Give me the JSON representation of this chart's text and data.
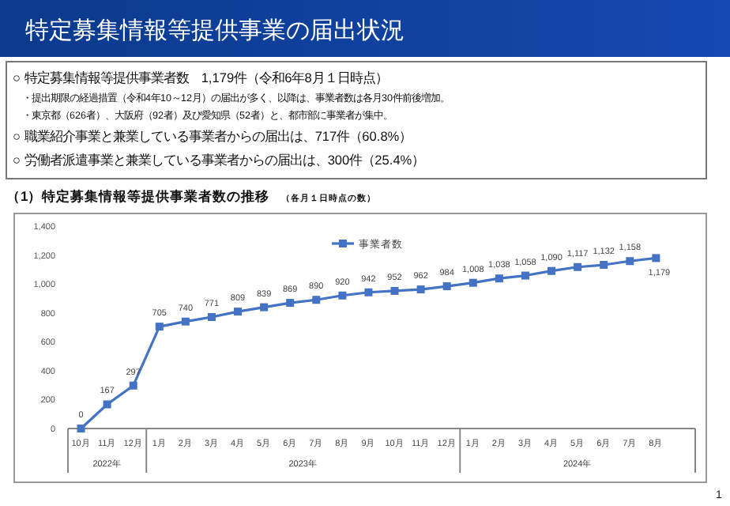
{
  "chart_data": {
    "type": "line",
    "title": "特定募集情報等提供事業の届出状況",
    "subtitle": "（1）特定募集情報等提供事業者数の推移",
    "x": [
      "2022-10",
      "2022-11",
      "2022-12",
      "2023-01",
      "2023-02",
      "2023-03",
      "2023-04",
      "2023-05",
      "2023-06",
      "2023-07",
      "2023-08",
      "2023-09",
      "2023-10",
      "2023-11",
      "2023-12",
      "2024-01",
      "2024-02",
      "2024-03",
      "2024-04",
      "2024-05",
      "2024-06",
      "2024-07",
      "2024-08"
    ],
    "xticks": [
      {
        "value": "2022-10",
        "label": "10月"
      },
      {
        "value": "2022-11",
        "label": "11月"
      },
      {
        "value": "2022-12",
        "label": "12月"
      },
      {
        "value": "2023-01",
        "label": "1月"
      },
      {
        "value": "2023-02",
        "label": "2月"
      },
      {
        "value": "2023-03",
        "label": "3月"
      },
      {
        "value": "2023-04",
        "label": "4月"
      },
      {
        "value": "2023-05",
        "label": "5月"
      },
      {
        "value": "2023-06",
        "label": "6月"
      },
      {
        "value": "2023-07",
        "label": "7月"
      },
      {
        "value": "2023-08",
        "label": "8月"
      },
      {
        "value": "2023-09",
        "label": "9月"
      },
      {
        "value": "2023-10",
        "label": "10月"
      },
      {
        "value": "2023-11",
        "label": "11月"
      },
      {
        "value": "2023-12",
        "label": "12月"
      },
      {
        "value": "2024-01",
        "label": "1月"
      },
      {
        "value": "2024-02",
        "label": "2月"
      },
      {
        "value": "2024-03",
        "label": "3月"
      },
      {
        "value": "2024-04",
        "label": "4月"
      },
      {
        "value": "2024-05",
        "label": "5月"
      },
      {
        "value": "2024-06",
        "label": "6月"
      },
      {
        "value": "2024-07",
        "label": "7月"
      },
      {
        "value": "2024-08",
        "label": "8月"
      }
    ],
    "series": [
      {
        "name": "事業者数",
        "color": "#4472c4",
        "values": [
          0,
          167,
          297,
          705,
          740,
          771,
          809,
          839,
          869,
          890,
          920,
          942,
          952,
          962,
          984,
          1008,
          1038,
          1058,
          1090,
          1117,
          1132,
          1158,
          1179
        ],
        "value_labels": [
          "0",
          "167",
          "297",
          "705",
          "740",
          "771",
          "809",
          "839",
          "869",
          "890",
          "920",
          "942",
          "952",
          "962",
          "984",
          "1,008",
          "1,038",
          "1,058",
          "1,090",
          "1,117",
          "1,132",
          "1,158",
          "1,179"
        ]
      }
    ],
    "ylim": [
      0,
      1400
    ],
    "yticks": [
      0,
      200,
      400,
      600,
      800,
      {
        "value": 1000,
        "label": "1,000"
      },
      {
        "value": 1200,
        "label": "1,200"
      },
      {
        "value": 1400,
        "label": "1,400"
      }
    ],
    "marker": "square",
    "legend": "top right",
    "grid": false,
    "annotations": [
      "○ 特定募集情報等提供事業者数　1,179件（令和6年8月１日時点）",
      "・提出期限の経過措置（令和4年10～12月）の届出が多く、以降は、事業者数は各月30件前後増加。",
      "・東京都（626者）、大阪府（92者）及び愛知県（52者）と、都市部に事業者が集中。",
      "○ 職業紹介事業と兼業している事業者からの届出は、717件（60.8%）",
      "○ 労働者派遣事業と兼業している事業者からの届出は、300件（25.4%）",
      "（各月１日時点の数）",
      "1",
      "2022年",
      "2023年",
      "2024年"
    ],
    "xlim": [
      "2022-09-16",
      "2024-09-16"
    ]
  }
}
